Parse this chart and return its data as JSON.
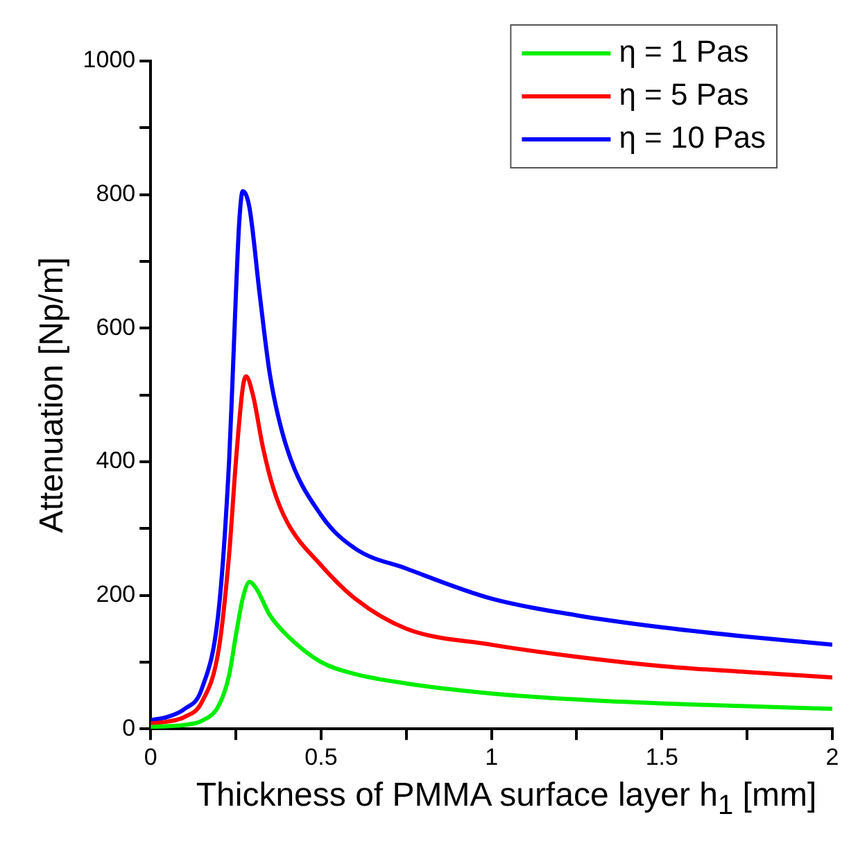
{
  "chart_data": {
    "type": "line",
    "xlabel": "Thickness of PMMA surface layer h$_{1}$ [mm]",
    "ylabel": "Attenuation [Np/m]",
    "xlim": [
      0,
      2
    ],
    "ylim": [
      0,
      1000
    ],
    "xticks": [
      0,
      {
        "value": 0.25,
        "label": null
      },
      0.5,
      {
        "value": 0.75,
        "label": null
      },
      1,
      {
        "value": 1.25,
        "label": null
      },
      1.5,
      {
        "value": 1.75,
        "label": null
      },
      2
    ],
    "yticks": [
      0,
      {
        "value": 100,
        "label": null
      },
      200,
      {
        "value": 300,
        "label": null
      },
      400,
      {
        "value": 500,
        "label": null
      },
      600,
      {
        "value": 700,
        "label": null
      },
      800,
      {
        "value": 900,
        "label": null
      },
      1000
    ],
    "grid": false,
    "legend": "top right",
    "marker": "none",
    "line_style": "solid",
    "series": [
      {
        "name": "η = 1 Pas",
        "color": "#00ee00",
        "x": [
          0,
          0.05,
          0.1,
          0.15,
          0.2,
          0.23,
          0.25,
          0.27,
          0.29,
          0.31,
          0.35,
          0.4,
          0.5,
          0.6,
          0.75,
          1,
          1.25,
          1.5,
          1.75,
          2
        ],
        "values": [
          3,
          4,
          6,
          12,
          35,
          80,
          140,
          195,
          220,
          210,
          170,
          140,
          100,
          82,
          68,
          53,
          44,
          38,
          34,
          30
        ]
      },
      {
        "name": "η = 5 Pas",
        "color": "#ff0000",
        "x": [
          0,
          0.05,
          0.1,
          0.15,
          0.2,
          0.23,
          0.25,
          0.27,
          0.28,
          0.3,
          0.33,
          0.36,
          0.4,
          0.5,
          0.6,
          0.75,
          1,
          1.25,
          1.5,
          1.75,
          2
        ],
        "values": [
          8,
          11,
          18,
          40,
          120,
          260,
          400,
          510,
          528,
          500,
          420,
          360,
          310,
          245,
          195,
          150,
          126,
          108,
          94,
          85,
          77
        ]
      },
      {
        "name": "η = 10 Pas",
        "color": "#0000ff",
        "x": [
          0,
          0.05,
          0.1,
          0.15,
          0.2,
          0.23,
          0.24,
          0.25,
          0.26,
          0.27,
          0.29,
          0.32,
          0.35,
          0.4,
          0.5,
          0.6,
          0.75,
          1,
          1.25,
          1.5,
          1.75,
          2
        ],
        "values": [
          13,
          18,
          30,
          60,
          180,
          400,
          520,
          650,
          760,
          805,
          780,
          650,
          530,
          420,
          320,
          270,
          240,
          195,
          170,
          152,
          138,
          126
        ]
      }
    ]
  }
}
